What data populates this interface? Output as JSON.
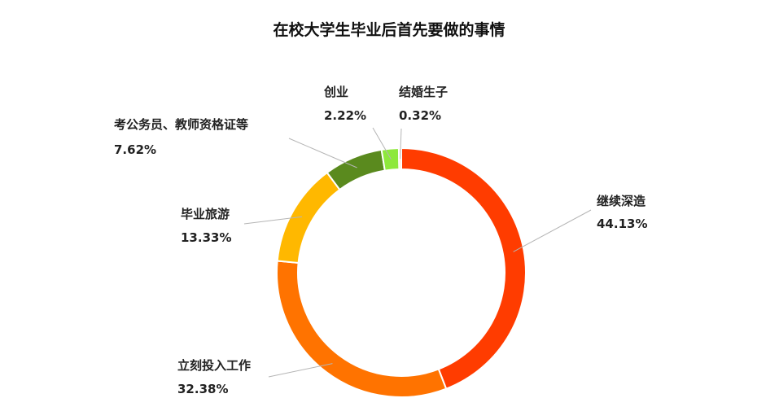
{
  "chart_data": {
    "type": "pie",
    "style": "donut",
    "title": "在校大学生毕业后首先要做的事情",
    "slices": [
      {
        "label": "继续深造",
        "value": 44.13,
        "value_text": "44.13%",
        "color": "#FF3C00"
      },
      {
        "label": "立刻投入工作",
        "value": 32.38,
        "value_text": "32.38%",
        "color": "#FF7300"
      },
      {
        "label": "毕业旅游",
        "value": 13.33,
        "value_text": "13.33%",
        "color": "#FFB800"
      },
      {
        "label": "考公务员、教师资格证等",
        "value": 7.62,
        "value_text": "7.62%",
        "color": "#5A8A1E"
      },
      {
        "label": "创业",
        "value": 2.22,
        "value_text": "2.22%",
        "color": "#8EE83C"
      },
      {
        "label": "结婚生子",
        "value": 0.32,
        "value_text": "0.32%",
        "color": "#FFD9B3"
      }
    ],
    "legend": "none",
    "label_style": "outside-with-leader-lines"
  }
}
